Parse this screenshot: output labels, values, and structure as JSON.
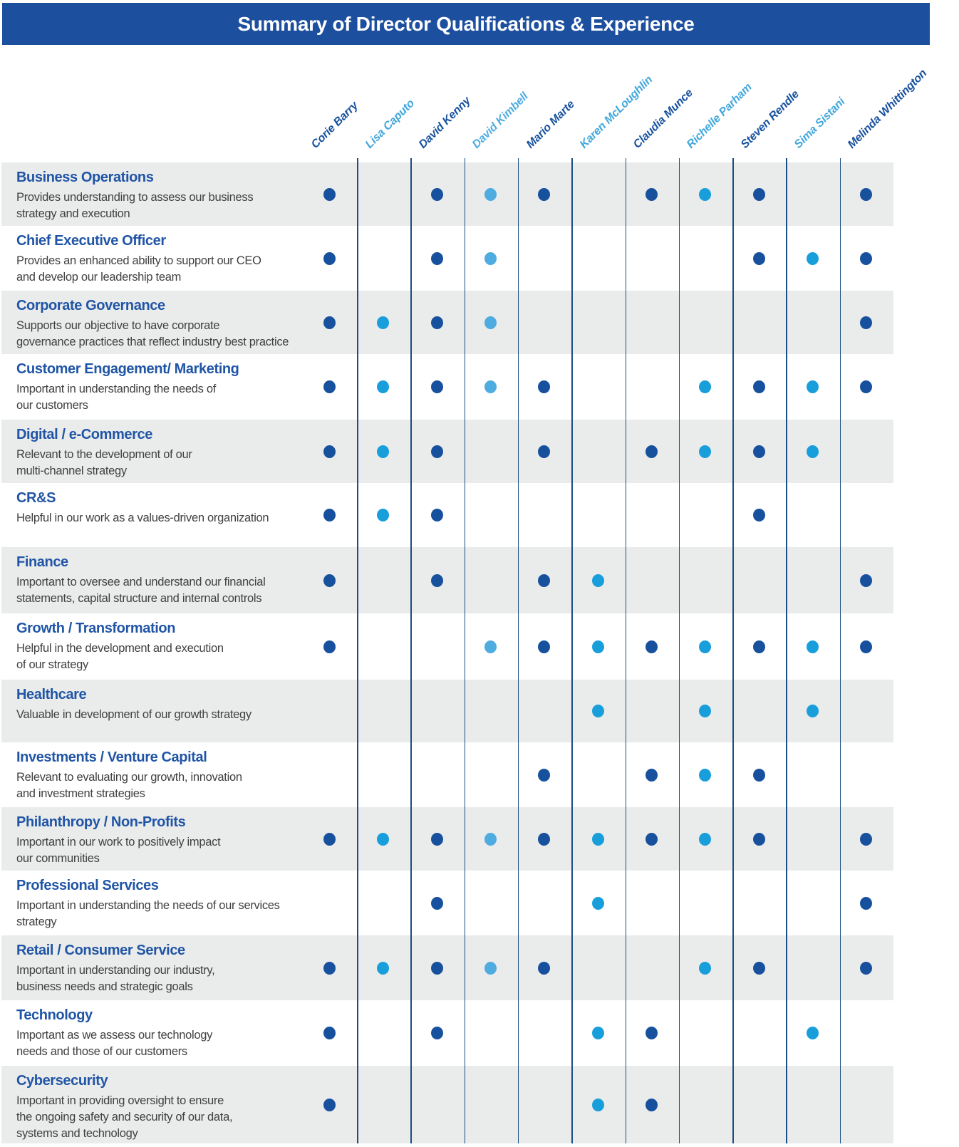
{
  "header": {
    "title": "Summary of Director Qualifications & Experience",
    "bar_color": "#1D4F9F",
    "text_color": "#FFFFFF"
  },
  "styles": {
    "heading_color": "#2055A6",
    "description_color": "#404040",
    "row_alt_color": "#EAEBEB",
    "grid_line_color": "#1A4E86",
    "dark_blue": "#17519E",
    "light_blue": "#189FDB"
  },
  "directors": [
    {
      "name": "Corie Barry",
      "name_color": "#17519E",
      "dot_color": "#17519E"
    },
    {
      "name": "Lisa Caputo",
      "name_color": "#41A7DC",
      "dot_color": "#189FDB"
    },
    {
      "name": "David Kenny",
      "name_color": "#17519E",
      "dot_color": "#17519E"
    },
    {
      "name": "David Kimbell",
      "name_color": "#4FACE0",
      "dot_color": "#4FACE0"
    },
    {
      "name": "Mario Marte",
      "name_color": "#17519E",
      "dot_color": "#17519E"
    },
    {
      "name": "Karen McLoughlin",
      "name_color": "#41A7DC",
      "dot_color": "#189FDB"
    },
    {
      "name": "Claudia Munce",
      "name_color": "#17519E",
      "dot_color": "#17519E"
    },
    {
      "name": "Richelle Parham",
      "name_color": "#41A7DC",
      "dot_color": "#189FDB"
    },
    {
      "name": "Steven Rendle",
      "name_color": "#17519E",
      "dot_color": "#17519E"
    },
    {
      "name": "Sima Sistani",
      "name_color": "#41A7DC",
      "dot_color": "#189FDB"
    },
    {
      "name": "Melinda Whittington",
      "name_color": "#17519E",
      "dot_color": "#17519E"
    }
  ],
  "qualifications": [
    {
      "title": "Business Operations",
      "description": "Provides understanding to assess our business\nstrategy and execution",
      "has": [
        0,
        2,
        3,
        4,
        6,
        7,
        8,
        10
      ]
    },
    {
      "title": "Chief Executive Officer",
      "description": "Provides an enhanced ability to support our CEO\nand develop our leadership team",
      "has": [
        0,
        2,
        3,
        8,
        9,
        10
      ]
    },
    {
      "title": "Corporate Governance",
      "description": "Supports our objective to have corporate\ngovernance practices that reflect industry best practice",
      "has": [
        0,
        1,
        2,
        3,
        10
      ]
    },
    {
      "title": "Customer Engagement/ Marketing",
      "description": "Important in understanding the needs of\nour customers",
      "has": [
        0,
        1,
        2,
        3,
        4,
        7,
        8,
        9,
        10
      ]
    },
    {
      "title": "Digital / e-Commerce",
      "description": "Relevant to the development of our\nmulti-channel strategy",
      "has": [
        0,
        1,
        2,
        4,
        6,
        7,
        8,
        9
      ]
    },
    {
      "title": "CR&S",
      "description": "Helpful in our work as a values-driven organization",
      "has": [
        0,
        1,
        2,
        8
      ]
    },
    {
      "title": "Finance",
      "description": "Important to oversee and understand our financial\nstatements, capital structure and internal controls",
      "has": [
        0,
        2,
        4,
        5,
        10
      ]
    },
    {
      "title": "Growth / Transformation",
      "description": "Helpful in the development and execution\nof our strategy",
      "has": [
        0,
        3,
        4,
        5,
        6,
        7,
        8,
        9,
        10
      ]
    },
    {
      "title": "Healthcare",
      "description": "Valuable in development of our growth strategy",
      "has": [
        5,
        7,
        9
      ]
    },
    {
      "title": "Investments / Venture Capital",
      "description": "Relevant to evaluating our growth, innovation\nand investment strategies",
      "has": [
        4,
        6,
        7,
        8
      ]
    },
    {
      "title": "Philanthropy / Non-Profits",
      "description": "Important in our work to positively impact\nour communities",
      "has": [
        0,
        1,
        2,
        3,
        4,
        5,
        6,
        7,
        8,
        10
      ]
    },
    {
      "title": "Professional Services",
      "description": "Important in understanding the needs of our services\nstrategy",
      "has": [
        2,
        5,
        10
      ]
    },
    {
      "title": "Retail / Consumer Service",
      "description": "Important in understanding our industry,\nbusiness needs and strategic goals",
      "has": [
        0,
        1,
        2,
        3,
        4,
        7,
        8,
        10
      ]
    },
    {
      "title": "Technology",
      "description": "Important as we assess our technology\nneeds and those of our customers",
      "has": [
        0,
        2,
        5,
        6,
        9
      ]
    },
    {
      "title": "Cybersecurity",
      "description": "Important in providing oversight to ensure\nthe ongoing safety and security of our data,\nsystems and technology",
      "has": [
        0,
        5,
        6
      ]
    }
  ]
}
